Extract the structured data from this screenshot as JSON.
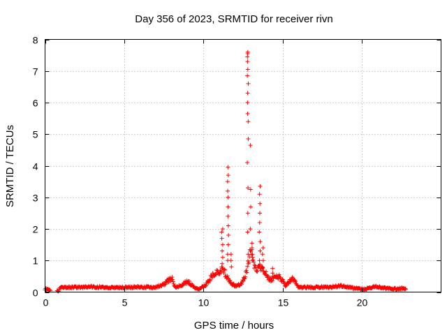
{
  "chart_data": {
    "type": "scatter",
    "title": "Day 356 of 2023, SRMTID for receiver rivn",
    "xlabel": "GPS time / hours",
    "ylabel": "SRMTID / TECUs",
    "xlim": [
      0,
      25
    ],
    "ylim": [
      0,
      8
    ],
    "x_ticks": [
      0,
      5,
      10,
      15,
      20
    ],
    "x_tick_labels": [
      "0",
      "5",
      "10",
      "15",
      "20"
    ],
    "y_ticks": [
      0,
      1,
      2,
      3,
      4,
      5,
      6,
      7,
      8
    ],
    "y_tick_labels": [
      "0",
      "1",
      "2",
      "3",
      "4",
      "5",
      "6",
      "7",
      "8"
    ],
    "grid": true,
    "marker": "plus",
    "marker_color": "#ff0000",
    "series": [
      {
        "name": "SRMTID",
        "x_range": [
          0.0,
          22.8
        ],
        "envelope": [
          [
            0.0,
            0.1
          ],
          [
            0.3,
            0.05
          ],
          [
            0.8,
            0.02
          ],
          [
            1.0,
            0.15
          ],
          [
            2.0,
            0.15
          ],
          [
            3.0,
            0.17
          ],
          [
            4.0,
            0.14
          ],
          [
            5.0,
            0.15
          ],
          [
            6.0,
            0.16
          ],
          [
            7.0,
            0.15
          ],
          [
            7.5,
            0.25
          ],
          [
            8.0,
            0.45
          ],
          [
            8.2,
            0.15
          ],
          [
            8.6,
            0.2
          ],
          [
            9.0,
            0.35
          ],
          [
            9.4,
            0.15
          ],
          [
            9.8,
            0.1
          ],
          [
            10.2,
            0.25
          ],
          [
            10.6,
            0.55
          ],
          [
            11.0,
            0.65
          ],
          [
            11.2,
            0.8
          ],
          [
            11.4,
            0.55
          ],
          [
            11.7,
            0.3
          ],
          [
            12.0,
            0.2
          ],
          [
            12.4,
            0.25
          ],
          [
            12.7,
            0.6
          ],
          [
            13.0,
            1.3
          ],
          [
            13.3,
            0.7
          ],
          [
            13.6,
            0.8
          ],
          [
            13.9,
            0.6
          ],
          [
            14.2,
            0.4
          ],
          [
            14.5,
            0.45
          ],
          [
            14.8,
            0.5
          ],
          [
            15.2,
            0.2
          ],
          [
            15.6,
            0.45
          ],
          [
            16.0,
            0.15
          ],
          [
            17.0,
            0.15
          ],
          [
            18.0,
            0.16
          ],
          [
            18.8,
            0.2
          ],
          [
            19.5,
            0.12
          ],
          [
            20.2,
            0.08
          ],
          [
            20.8,
            0.18
          ],
          [
            21.5,
            0.12
          ],
          [
            22.0,
            0.1
          ],
          [
            22.8,
            0.12
          ]
        ],
        "spikes": [
          {
            "x": 11.18,
            "points": [
              0.9,
              1.1,
              1.3,
              1.5,
              1.7,
              1.9,
              2.0
            ]
          },
          {
            "x": 11.55,
            "points": [
              1.0,
              1.2,
              1.5,
              1.8,
              2.1,
              2.4,
              2.7,
              3.0,
              3.2,
              3.5,
              3.7,
              3.95
            ]
          },
          {
            "x": 11.75,
            "points": [
              0.8,
              1.0,
              1.2
            ]
          },
          {
            "x": 12.8,
            "points": [
              1.2,
              1.9,
              2.5,
              3.3,
              4.1,
              4.85,
              5.4,
              5.65,
              6.0,
              6.3,
              6.6,
              6.85,
              7.05,
              7.3,
              7.45,
              7.55,
              7.6
            ]
          },
          {
            "x": 12.95,
            "points": [
              1.3,
              2.0,
              2.7,
              3.25,
              4.65
            ]
          },
          {
            "x": 13.1,
            "points": [
              1.0,
              1.2,
              1.4,
              1.55
            ]
          },
          {
            "x": 13.55,
            "points": [
              1.0,
              1.3,
              1.6,
              1.9,
              2.2,
              2.5,
              2.8,
              3.1,
              3.35
            ]
          },
          {
            "x": 13.75,
            "points": [
              0.8,
              1.0,
              1.2,
              1.4
            ]
          },
          {
            "x": 14.35,
            "points": [
              0.6,
              0.75
            ]
          }
        ]
      }
    ]
  }
}
